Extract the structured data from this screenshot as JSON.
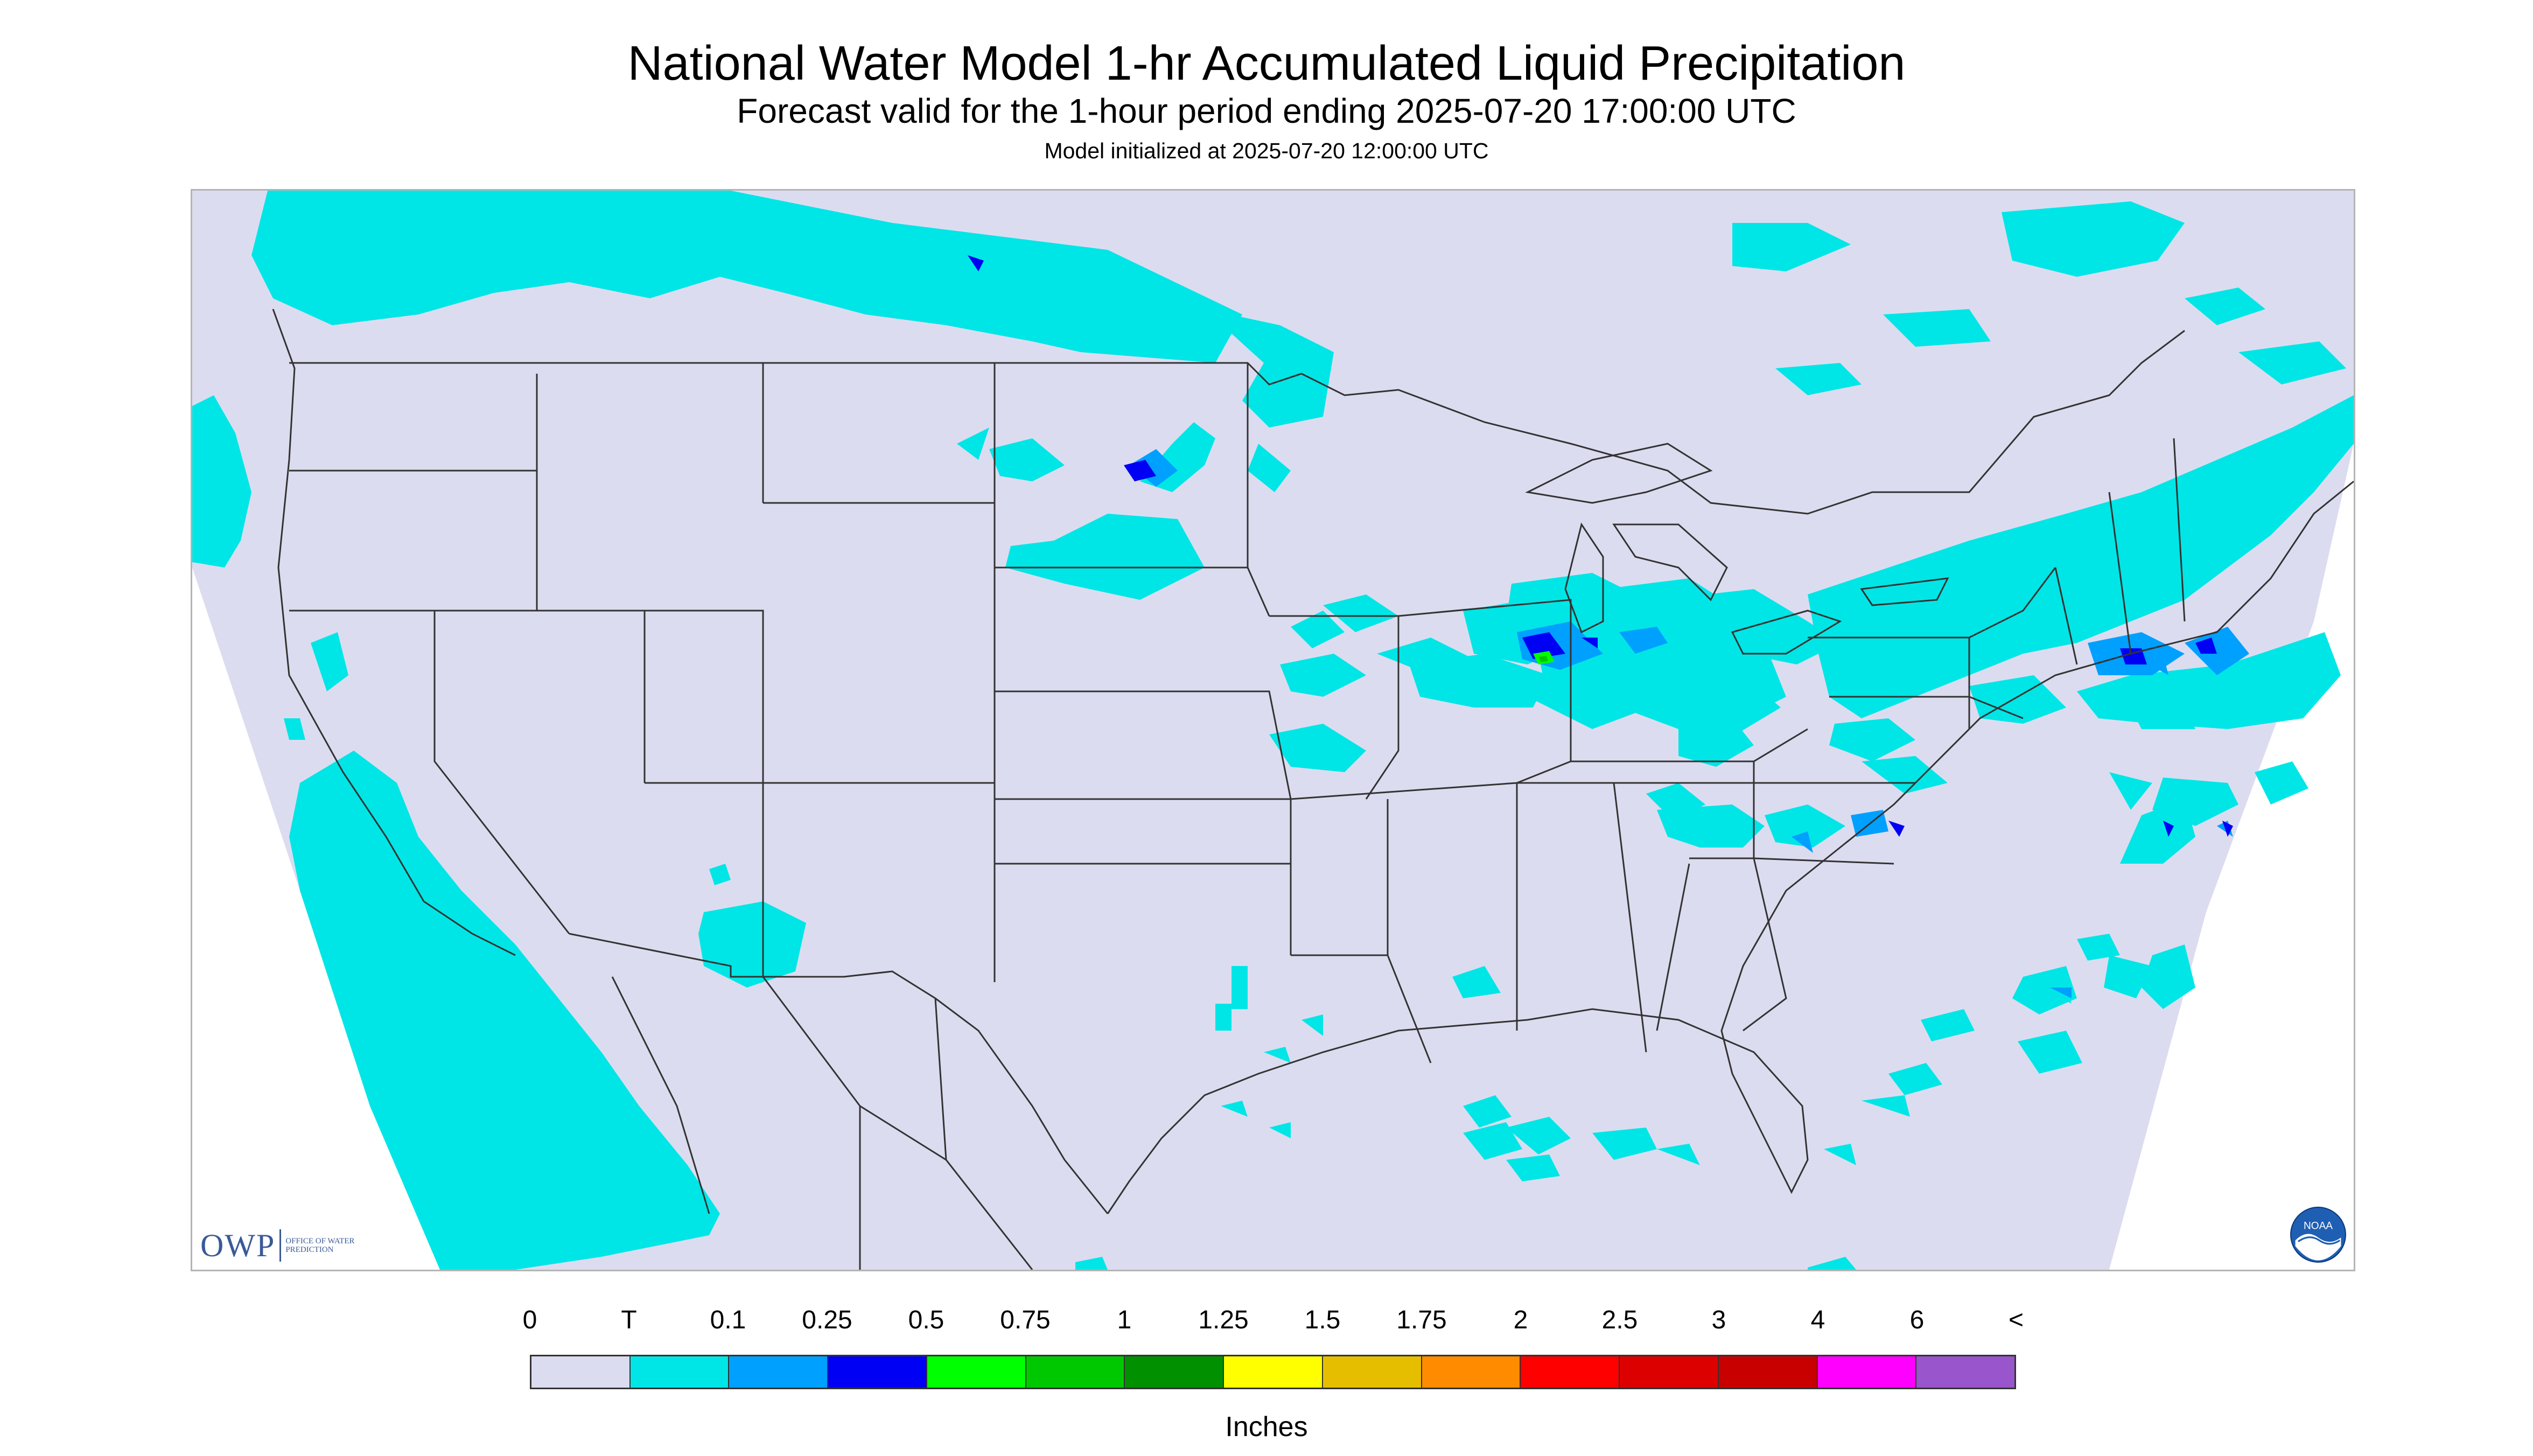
{
  "header": {
    "title": "National Water Model 1-hr Accumulated Liquid Precipitation",
    "subtitle": "Forecast valid for the 1-hour period ending 2025-07-20 17:00:00 UTC",
    "init_line": "Model initialized at 2025-07-20 12:00:00 UTC"
  },
  "logos": {
    "owp_text": "OWP",
    "owp_subtext": "Office of Water Prediction",
    "noaa_text": "NOAA"
  },
  "legend": {
    "units": "Inches",
    "labels": [
      "0",
      "T",
      "0.1",
      "0.25",
      "0.5",
      "0.75",
      "1",
      "1.25",
      "1.5",
      "1.75",
      "2",
      "2.5",
      "3",
      "4",
      "6",
      "<"
    ],
    "colors": [
      "#dcdcf0",
      "#00e6e6",
      "#00a0ff",
      "#0000f5",
      "#00ff00",
      "#00c800",
      "#009000",
      "#ffff00",
      "#e6be00",
      "#ff8c00",
      "#ff0000",
      "#dc0000",
      "#c80000",
      "#ff00ff",
      "#9955cc"
    ]
  },
  "map": {
    "background_color": "#dcdcf0",
    "outside_color": "#ffffff",
    "border_color": "#333333",
    "precip_colors": {
      "trace": "#00e6e6",
      "light": "#00a0ff",
      "moderate": "#0000f5",
      "heavy": "#00ff00",
      "heavier": "#00c800"
    }
  }
}
